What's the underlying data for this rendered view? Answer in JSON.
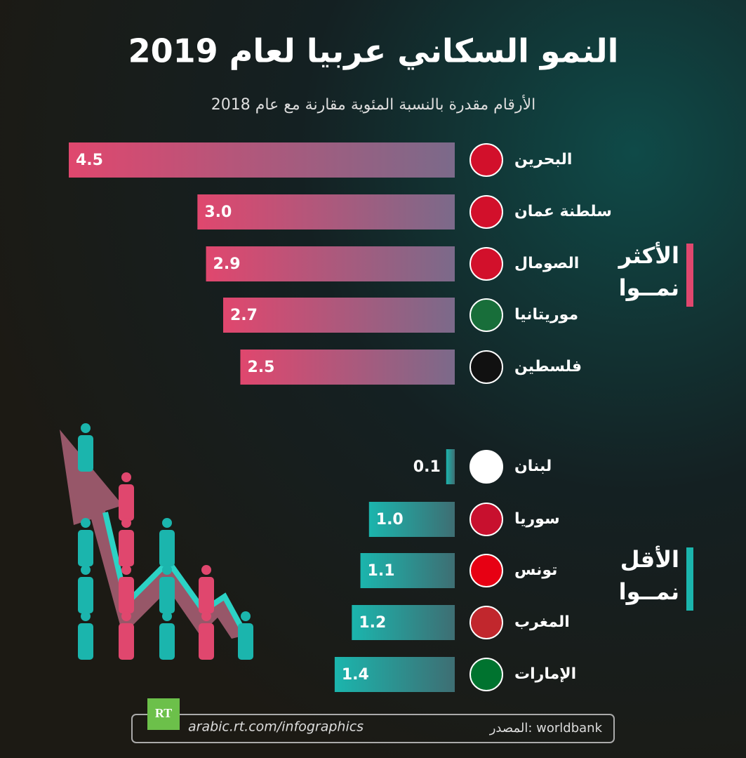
{
  "title": "النمو السكاني عربيا لعام 2019",
  "subtitle": "الأرقام مقدرة بالنسبة المئوية مقارنة مع عام 2018",
  "chart_data": [
    {
      "type": "bar",
      "group_label": [
        "الأكثر",
        "نمــوا"
      ],
      "categories": [
        "البحرين",
        "سلطنة عمان",
        "الصومال",
        "موريتانيا",
        "فلسطين"
      ],
      "values": [
        4.5,
        3.0,
        2.9,
        2.7,
        2.5
      ],
      "value_labels": [
        "4.5",
        "3.0",
        "2.9",
        "2.7",
        "2.5"
      ],
      "color": "#e0476e"
    },
    {
      "type": "bar",
      "group_label": [
        "الأقل",
        "نمــوا"
      ],
      "categories": [
        "لبنان",
        "سوريا",
        "تونس",
        "المغرب",
        "الإمارات"
      ],
      "values": [
        0.1,
        1.0,
        1.1,
        1.2,
        1.4
      ],
      "value_labels": [
        "0.1",
        "1.0",
        "1.1",
        "1.2",
        "1.4"
      ],
      "color": "#1bb5ad"
    }
  ],
  "footer": {
    "logo": "RT",
    "url": "arabic.rt.com/infographics",
    "source": "المصدر: worldbank"
  }
}
